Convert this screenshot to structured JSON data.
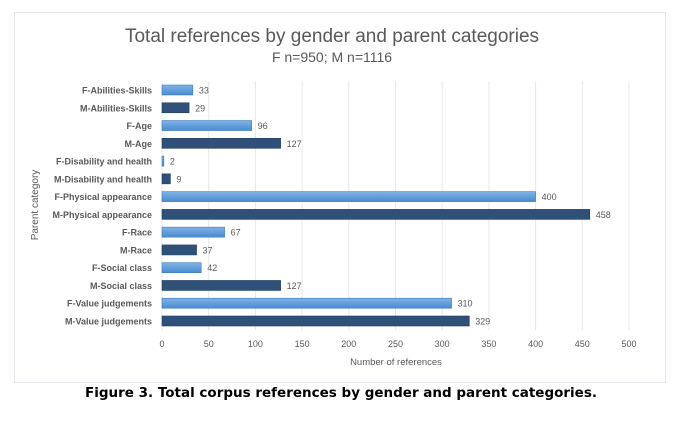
{
  "chart_data": {
    "type": "bar",
    "orientation": "horizontal",
    "title": "Total references by gender and parent categories",
    "subtitle": "F n=950; M n=1116",
    "xlabel": "Number of references",
    "ylabel": "Parent category",
    "xlim": [
      0,
      500
    ],
    "xticks": [
      0,
      50,
      100,
      150,
      200,
      250,
      300,
      350,
      400,
      450,
      500
    ],
    "grid": true,
    "categories": [
      "F-Abilities-Skills",
      "M-Abilities-Skills",
      "F-Age",
      "M-Age",
      "F-Disability and health",
      "M-Disability and health",
      "F-Physical appearance",
      "M-Physical appearance",
      "F-Race",
      "M-Race",
      "F-Social class",
      "M-Social class",
      "F-Value judgements",
      "M-Value judgements"
    ],
    "values": [
      33,
      29,
      96,
      127,
      2,
      9,
      400,
      458,
      67,
      37,
      42,
      127,
      310,
      329
    ],
    "colors": {
      "F": "#5b9bd5",
      "M": "#2e5079"
    }
  },
  "caption": "Figure 3. Total corpus references by gender and parent categories."
}
